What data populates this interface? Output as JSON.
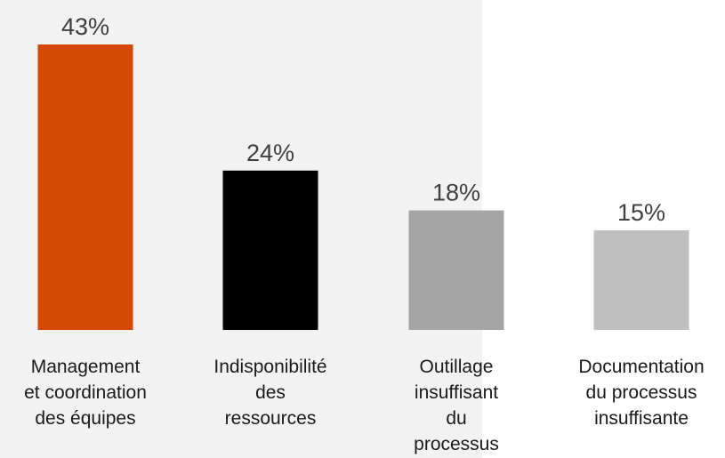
{
  "chart_data": {
    "type": "bar",
    "title": "",
    "xlabel": "",
    "ylabel": "",
    "ylim": [
      0,
      43
    ],
    "grid": false,
    "legend": "none",
    "categories": [
      [
        "Management",
        "et coordination",
        "des équipes"
      ],
      [
        "Indisponibilité",
        "des",
        "ressources"
      ],
      [
        "Outillage",
        "insuffisant",
        "du",
        "processus"
      ],
      [
        "Documentation",
        "du processus",
        "insuffisante"
      ]
    ],
    "values": [
      43,
      24,
      18,
      15
    ],
    "value_labels": [
      "43%",
      "24%",
      "18%",
      "15%"
    ],
    "colors": [
      "#d24a03",
      "#000000",
      "#a5a5a5",
      "#bfbfbf"
    ],
    "background_panel_color": "#f2f2f2"
  }
}
